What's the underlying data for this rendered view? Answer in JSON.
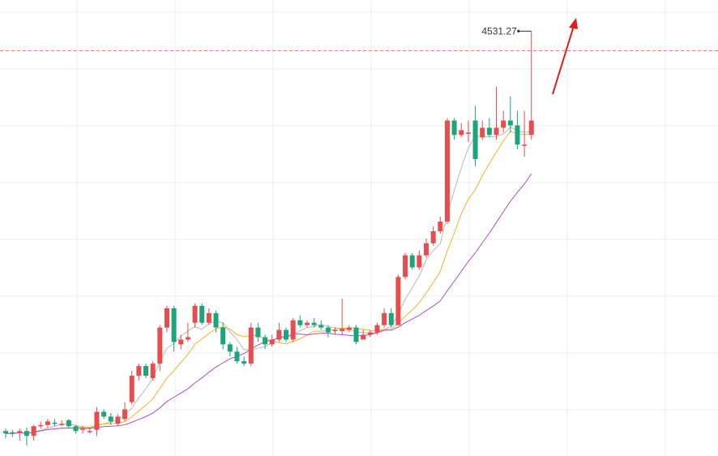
{
  "chart_data": {
    "type": "candlestick",
    "title": "",
    "xlabel": "",
    "ylabel": "",
    "ylim": [
      2800,
      4600
    ],
    "grid": true,
    "annotation": {
      "label": "4531.27",
      "value": 4531.27
    },
    "reference_line": 4450,
    "colors": {
      "up": "#e84c4c",
      "down": "#1aa57a",
      "ma_fast": "#b9b9b9",
      "ma_mid": "#f0b429",
      "ma_slow": "#b04ec9",
      "grid": "#eeeeee",
      "reference": "#f08080",
      "arrow": "#e31b1b"
    },
    "candles": [
      [
        2870,
        2860,
        2880,
        2840
      ],
      [
        2865,
        2860,
        2875,
        2845
      ],
      [
        2862,
        2870,
        2880,
        2830
      ],
      [
        2870,
        2850,
        2885,
        2810
      ],
      [
        2850,
        2890,
        2895,
        2830
      ],
      [
        2890,
        2895,
        2910,
        2880
      ],
      [
        2895,
        2910,
        2920,
        2885
      ],
      [
        2905,
        2900,
        2920,
        2890
      ],
      [
        2900,
        2900,
        2915,
        2890
      ],
      [
        2915,
        2890,
        2920,
        2880
      ],
      [
        2890,
        2870,
        2895,
        2860
      ],
      [
        2875,
        2880,
        2890,
        2860
      ],
      [
        2870,
        2870,
        2885,
        2860
      ],
      [
        2875,
        2950,
        2970,
        2850
      ],
      [
        2950,
        2930,
        2960,
        2920
      ],
      [
        2930,
        2910,
        2945,
        2895
      ],
      [
        2900,
        2930,
        2940,
        2890
      ],
      [
        2920,
        2960,
        2990,
        2910
      ],
      [
        2990,
        3100,
        3120,
        2980
      ],
      [
        3100,
        3140,
        3150,
        3080
      ],
      [
        3140,
        3100,
        3150,
        3090
      ],
      [
        3090,
        3150,
        3160,
        3080
      ],
      [
        3150,
        3300,
        3310,
        3120
      ],
      [
        3300,
        3380,
        3390,
        3280
      ],
      [
        3380,
        3240,
        3390,
        3200
      ],
      [
        3230,
        3250,
        3270,
        3210
      ],
      [
        3250,
        3260,
        3320,
        3240
      ],
      [
        3320,
        3390,
        3400,
        3300
      ],
      [
        3390,
        3320,
        3400,
        3310
      ],
      [
        3320,
        3360,
        3380,
        3310
      ],
      [
        3360,
        3300,
        3370,
        3280
      ],
      [
        3300,
        3230,
        3320,
        3210
      ],
      [
        3230,
        3200,
        3240,
        3180
      ],
      [
        3200,
        3160,
        3220,
        3150
      ],
      [
        3160,
        3150,
        3180,
        3140
      ],
      [
        3150,
        3300,
        3320,
        3140
      ],
      [
        3300,
        3260,
        3320,
        3240
      ],
      [
        3260,
        3230,
        3270,
        3210
      ],
      [
        3230,
        3250,
        3270,
        3220
      ],
      [
        3250,
        3290,
        3320,
        3240
      ],
      [
        3290,
        3250,
        3300,
        3240
      ],
      [
        3250,
        3330,
        3340,
        3240
      ],
      [
        3330,
        3310,
        3350,
        3300
      ],
      [
        3310,
        3320,
        3330,
        3300
      ],
      [
        3320,
        3310,
        3340,
        3300
      ],
      [
        3310,
        3300,
        3330,
        3290
      ],
      [
        3300,
        3280,
        3310,
        3260
      ],
      [
        3285,
        3290,
        3300,
        3270
      ],
      [
        3285,
        3295,
        3420,
        3270
      ],
      [
        3290,
        3300,
        3310,
        3280
      ],
      [
        3300,
        3240,
        3310,
        3230
      ],
      [
        3250,
        3270,
        3290,
        3250
      ],
      [
        3270,
        3280,
        3290,
        3260
      ],
      [
        3280,
        3310,
        3320,
        3270
      ],
      [
        3310,
        3360,
        3380,
        3300
      ],
      [
        3360,
        3310,
        3380,
        3300
      ],
      [
        3310,
        3510,
        3520,
        3310
      ],
      [
        3510,
        3600,
        3610,
        3500
      ],
      [
        3600,
        3550,
        3610,
        3540
      ],
      [
        3550,
        3600,
        3620,
        3540
      ],
      [
        3600,
        3650,
        3670,
        3590
      ],
      [
        3650,
        3700,
        3720,
        3640
      ],
      [
        3700,
        3740,
        3760,
        3690
      ],
      [
        3740,
        4160,
        4170,
        3730
      ],
      [
        4160,
        4100,
        4170,
        4080
      ],
      [
        4100,
        4120,
        4150,
        4090
      ],
      [
        4110,
        4110,
        4160,
        4070
      ],
      [
        4160,
        4000,
        4220,
        3970
      ],
      [
        4090,
        4130,
        4160,
        4080
      ],
      [
        4130,
        4100,
        4170,
        4090
      ],
      [
        4100,
        4130,
        4300,
        4080
      ],
      [
        4130,
        4160,
        4200,
        4110
      ],
      [
        4160,
        4140,
        4260,
        4110
      ],
      [
        4140,
        4060,
        4200,
        4040
      ],
      [
        4060,
        4060,
        4200,
        4010
      ],
      [
        4100,
        4160,
        4530,
        4080
      ]
    ]
  }
}
